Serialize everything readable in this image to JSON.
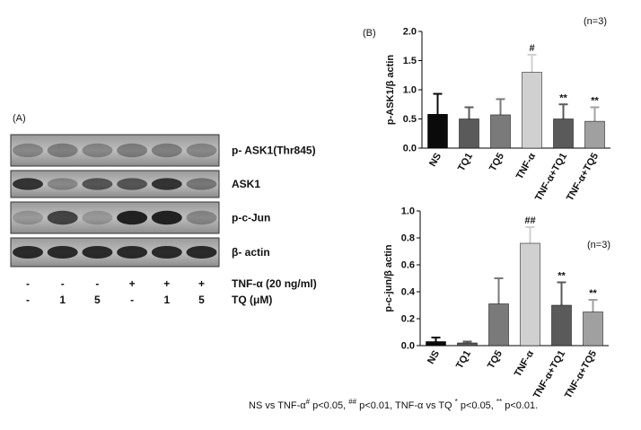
{
  "chart_data": [
    {
      "type": "bar",
      "panel_label": "(B)",
      "note": "(n=3)",
      "ylabel": "p-ASK1/β actin",
      "categories": [
        "NS",
        "TQ1",
        "TQ5",
        "TNF-α",
        "TNF-α+TQ1",
        "TNF-α+TQ5"
      ],
      "values": [
        0.58,
        0.5,
        0.57,
        1.3,
        0.5,
        0.46
      ],
      "errors": [
        0.35,
        0.2,
        0.27,
        0.3,
        0.25,
        0.24
      ],
      "colors": [
        "#0a0a0a",
        "#5a5a5a",
        "#7a7a7a",
        "#d0d0d0",
        "#5a5a5a",
        "#a0a0a0"
      ],
      "annotations": [
        {
          "category": "TNF-α",
          "text": "#"
        },
        {
          "category": "TNF-α+TQ1",
          "text": "**"
        },
        {
          "category": "TNF-α+TQ5",
          "text": "**"
        }
      ],
      "ylim": [
        0,
        2
      ],
      "yticks": [
        {
          "value": 0,
          "label": "0.0"
        },
        0.5,
        {
          "value": 1,
          "label": "1.0"
        },
        1.5,
        {
          "value": 2,
          "label": "2.0"
        }
      ]
    },
    {
      "type": "bar",
      "note": "(n=3)",
      "ylabel": "p-c-jun/β actin",
      "categories": [
        "NS",
        "TQ1",
        "TQ5",
        "TNF-α",
        "TNF-α+TQ1",
        "TNF-α+TQ5"
      ],
      "values": [
        0.03,
        0.02,
        0.31,
        0.76,
        0.3,
        0.25
      ],
      "errors": [
        0.03,
        0.01,
        0.19,
        0.12,
        0.17,
        0.09
      ],
      "colors": [
        "#0a0a0a",
        "#5a5a5a",
        "#7a7a7a",
        "#d0d0d0",
        "#5a5a5a",
        "#a0a0a0"
      ],
      "annotations": [
        {
          "category": "TNF-α",
          "text": "##"
        },
        {
          "category": "TNF-α+TQ1",
          "text": "**"
        },
        {
          "category": "TNF-α+TQ5",
          "text": "**"
        }
      ],
      "ylim": [
        0,
        1
      ],
      "yticks": [
        {
          "value": 0,
          "label": "0.0"
        },
        0.2,
        0.4,
        0.6,
        0.8,
        {
          "value": 1,
          "label": "1.0"
        }
      ]
    }
  ],
  "blot": {
    "panel_label": "(A)",
    "rows": [
      "p- ASK1(Thr845)",
      "ASK1",
      "p-c-Jun",
      "β- actin"
    ],
    "treatments": [
      {
        "label": "TNF-α (20 ng/ml)",
        "lanes": [
          "-",
          "-",
          "-",
          "+",
          "+",
          "+"
        ]
      },
      {
        "label": "TQ (μM)",
        "lanes": [
          "-",
          "1",
          "5",
          "-",
          "1",
          "5"
        ]
      }
    ]
  },
  "footnote": [
    "NS vs TNF-α",
    "#",
    " p<0.05, ",
    "##",
    " p<0.01, TNF-α vs TQ ",
    "*",
    " p<0.05, ",
    "**",
    " p<0.01."
  ]
}
